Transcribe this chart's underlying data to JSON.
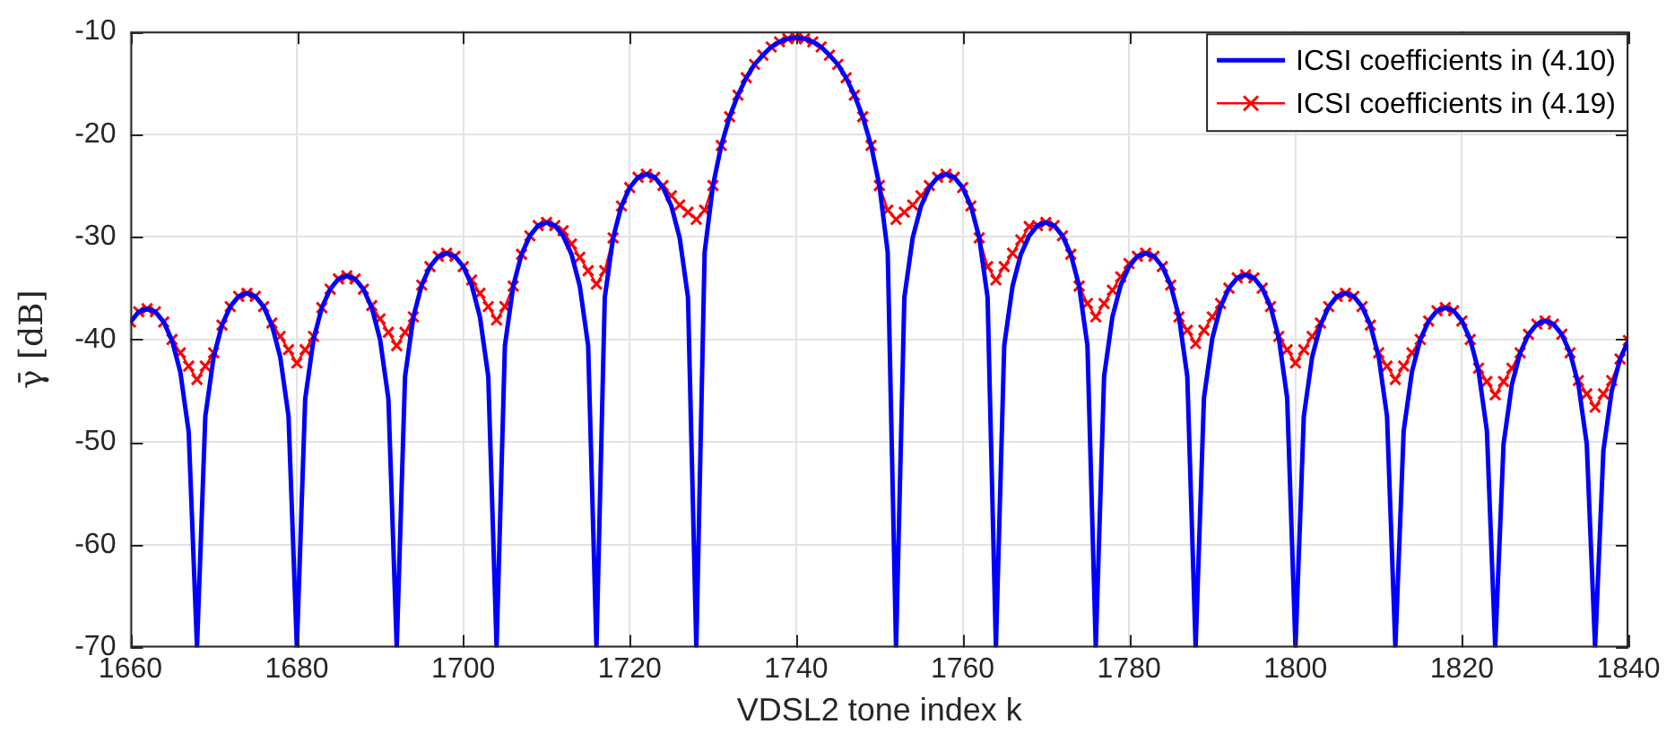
{
  "chart_data": {
    "type": "line",
    "xlabel": "VDSL2 tone index k",
    "ylabel": "γ̄ [dB]",
    "xlim": [
      1660,
      1840
    ],
    "xticks": [
      1660,
      1680,
      1700,
      1720,
      1740,
      1760,
      1780,
      1800,
      1820,
      1840
    ],
    "ylim": [
      -70,
      -10
    ],
    "yticks": [
      -70,
      -60,
      -50,
      -40,
      -30,
      -20,
      -10
    ],
    "grid": true,
    "legend": "top right",
    "x": [
      1660,
      1661,
      1662,
      1663,
      1664,
      1665,
      1666,
      1667,
      1668,
      1669,
      1670,
      1671,
      1672,
      1673,
      1674,
      1675,
      1676,
      1677,
      1678,
      1679,
      1680,
      1681,
      1682,
      1683,
      1684,
      1685,
      1686,
      1687,
      1688,
      1689,
      1690,
      1691,
      1692,
      1693,
      1694,
      1695,
      1696,
      1697,
      1698,
      1699,
      1700,
      1701,
      1702,
      1703,
      1704,
      1705,
      1706,
      1707,
      1708,
      1709,
      1710,
      1711,
      1712,
      1713,
      1714,
      1715,
      1716,
      1717,
      1718,
      1719,
      1720,
      1721,
      1722,
      1723,
      1724,
      1725,
      1726,
      1727,
      1728,
      1729,
      1730,
      1731,
      1732,
      1733,
      1734,
      1735,
      1736,
      1737,
      1738,
      1739,
      1740,
      1741,
      1742,
      1743,
      1744,
      1745,
      1746,
      1747,
      1748,
      1749,
      1750,
      1751,
      1752,
      1753,
      1754,
      1755,
      1756,
      1757,
      1758,
      1759,
      1760,
      1761,
      1762,
      1763,
      1764,
      1765,
      1766,
      1767,
      1768,
      1769,
      1770,
      1771,
      1772,
      1773,
      1774,
      1775,
      1776,
      1777,
      1778,
      1779,
      1780,
      1781,
      1782,
      1783,
      1784,
      1785,
      1786,
      1787,
      1788,
      1789,
      1790,
      1791,
      1792,
      1793,
      1794,
      1795,
      1796,
      1797,
      1798,
      1799,
      1800,
      1801,
      1802,
      1803,
      1804,
      1805,
      1806,
      1807,
      1808,
      1809,
      1810,
      1811,
      1812,
      1813,
      1814,
      1815,
      1816,
      1817,
      1818,
      1819,
      1820,
      1821,
      1822,
      1823,
      1824,
      1825,
      1826,
      1827,
      1828,
      1829,
      1830,
      1831,
      1832,
      1833,
      1834,
      1835,
      1836,
      1837,
      1838,
      1839,
      1840
    ],
    "series": [
      {
        "name": "ICSI coefficients in (4.10)",
        "color": "#0000ff",
        "marker": "none",
        "values": [
          -38.3,
          -37.3,
          -37.0,
          -37.3,
          -38.3,
          -40.1,
          -43.2,
          -49.0,
          -70,
          -47.5,
          -41.7,
          -38.6,
          -36.8,
          -35.8,
          -35.5,
          -35.8,
          -36.8,
          -38.6,
          -41.7,
          -47.5,
          -70,
          -45.8,
          -40.0,
          -36.9,
          -35.1,
          -34.1,
          -33.8,
          -34.1,
          -35.1,
          -36.9,
          -40.0,
          -45.8,
          -70,
          -43.6,
          -37.8,
          -34.7,
          -32.9,
          -31.9,
          -31.6,
          -31.9,
          -32.9,
          -34.7,
          -37.8,
          -43.6,
          -70,
          -40.6,
          -34.8,
          -31.7,
          -29.9,
          -28.9,
          -28.6,
          -28.9,
          -29.9,
          -31.7,
          -34.8,
          -40.6,
          -70,
          -35.9,
          -30.1,
          -27.0,
          -25.2,
          -24.2,
          -23.9,
          -24.2,
          -25.2,
          -27.0,
          -30.1,
          -35.9,
          -70,
          -31.5,
          -25.0,
          -21.1,
          -18.3,
          -16.2,
          -14.5,
          -13.2,
          -12.3,
          -11.5,
          -11.0,
          -10.7,
          -10.6,
          -10.7,
          -11.0,
          -11.5,
          -12.3,
          -13.2,
          -14.5,
          -16.2,
          -18.3,
          -21.1,
          -25.0,
          -31.5,
          -70,
          -35.9,
          -30.1,
          -27.0,
          -25.2,
          -24.2,
          -23.9,
          -24.2,
          -25.2,
          -27.0,
          -30.1,
          -35.9,
          -70,
          -40.6,
          -34.8,
          -31.7,
          -29.9,
          -28.9,
          -28.6,
          -28.9,
          -29.9,
          -31.7,
          -34.8,
          -40.6,
          -70,
          -43.6,
          -37.8,
          -34.7,
          -32.9,
          -31.9,
          -31.6,
          -31.9,
          -32.9,
          -34.7,
          -37.8,
          -43.6,
          -70,
          -45.7,
          -39.9,
          -36.8,
          -35.0,
          -34.0,
          -33.7,
          -34.0,
          -35.0,
          -36.8,
          -39.9,
          -45.7,
          -70,
          -47.5,
          -41.7,
          -38.6,
          -36.8,
          -35.8,
          -35.5,
          -35.8,
          -36.8,
          -38.6,
          -41.7,
          -47.5,
          -70,
          -48.9,
          -43.1,
          -40.0,
          -38.2,
          -37.2,
          -36.9,
          -37.2,
          -38.2,
          -40.0,
          -43.1,
          -48.9,
          -70,
          -50.2,
          -44.4,
          -41.3,
          -39.5,
          -38.5,
          -38.2,
          -38.5,
          -39.5,
          -41.3,
          -44.4,
          -50.2,
          -70,
          -50.8,
          -45.0,
          -41.9,
          -40.1
        ]
      },
      {
        "name": "ICSI coefficients in (4.19)",
        "color": "#ff0000",
        "marker": "cross",
        "values": [
          -38.3,
          -37.3,
          -37.0,
          -37.3,
          -38.3,
          -40.0,
          -41.3,
          -42.6,
          -43.9,
          -42.6,
          -41.3,
          -38.6,
          -36.8,
          -35.8,
          -35.5,
          -35.8,
          -36.8,
          -38.4,
          -39.7,
          -41.0,
          -42.3,
          -41.0,
          -39.7,
          -36.9,
          -35.1,
          -34.1,
          -33.8,
          -34.1,
          -35.1,
          -36.7,
          -38.0,
          -39.3,
          -40.6,
          -39.3,
          -37.8,
          -34.7,
          -32.9,
          -31.9,
          -31.6,
          -31.9,
          -32.9,
          -34.2,
          -35.5,
          -36.8,
          -38.1,
          -36.8,
          -34.8,
          -31.7,
          -29.9,
          -28.9,
          -28.6,
          -28.9,
          -29.4,
          -30.7,
          -32.0,
          -33.3,
          -34.6,
          -33.3,
          -30.1,
          -27.0,
          -25.2,
          -24.2,
          -23.9,
          -24.2,
          -25.0,
          -26.0,
          -26.9,
          -27.6,
          -28.3,
          -27.4,
          -25.0,
          -21.1,
          -18.3,
          -16.2,
          -14.5,
          -13.2,
          -12.3,
          -11.5,
          -11.0,
          -10.7,
          -10.6,
          -10.7,
          -11.0,
          -11.5,
          -12.3,
          -13.2,
          -14.5,
          -16.2,
          -18.3,
          -21.1,
          -25.0,
          -27.4,
          -28.3,
          -27.6,
          -26.9,
          -26.0,
          -25.0,
          -24.2,
          -23.9,
          -24.2,
          -25.2,
          -27.0,
          -30.1,
          -32.9,
          -34.2,
          -32.9,
          -31.6,
          -30.3,
          -29.0,
          -28.9,
          -28.6,
          -28.9,
          -29.9,
          -31.7,
          -34.8,
          -36.5,
          -37.8,
          -36.5,
          -35.2,
          -33.9,
          -32.6,
          -31.9,
          -31.6,
          -31.9,
          -32.9,
          -34.7,
          -37.8,
          -39.1,
          -40.4,
          -39.1,
          -37.8,
          -36.5,
          -35.0,
          -34.0,
          -33.7,
          -34.0,
          -35.0,
          -36.8,
          -39.7,
          -41.0,
          -42.3,
          -41.0,
          -39.7,
          -38.4,
          -36.8,
          -35.8,
          -35.5,
          -35.8,
          -36.8,
          -38.6,
          -41.3,
          -42.6,
          -43.9,
          -42.6,
          -41.3,
          -40.0,
          -38.2,
          -37.2,
          -36.9,
          -37.2,
          -38.2,
          -40.0,
          -42.8,
          -44.1,
          -45.4,
          -44.1,
          -42.8,
          -41.3,
          -39.5,
          -38.5,
          -38.2,
          -38.5,
          -39.5,
          -41.3,
          -44.0,
          -45.3,
          -46.6,
          -45.3,
          -44.0,
          -41.9,
          -40.1
        ]
      }
    ]
  }
}
